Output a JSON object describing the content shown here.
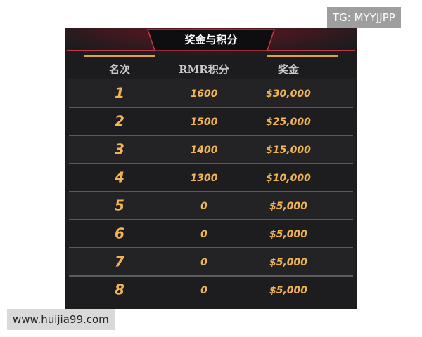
{
  "watermarks": {
    "top": "TG: MYYJJPP",
    "bottom": "www.huijia99.com"
  },
  "table": {
    "title": "奖金与积分",
    "header": [
      "名次",
      "RMR积分",
      "奖金"
    ],
    "rows": [
      [
        "1",
        "1600",
        "$30,000"
      ],
      [
        "2",
        "1500",
        "$25,000"
      ],
      [
        "3",
        "1400",
        "$15,000"
      ],
      [
        "4",
        "1300",
        "$10,000"
      ],
      [
        "5",
        "0",
        "$5,000"
      ],
      [
        "6",
        "0",
        "$5,000"
      ],
      [
        "7",
        "0",
        "$5,000"
      ],
      [
        "8",
        "0",
        "$5,000"
      ]
    ]
  }
}
